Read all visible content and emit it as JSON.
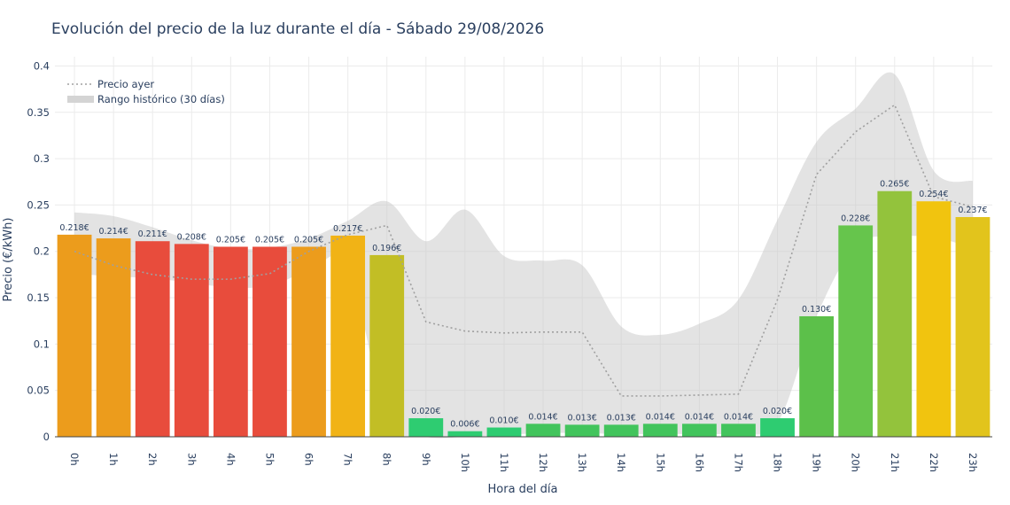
{
  "chart_data": {
    "type": "bar",
    "title": "Evolución del precio de la luz durante el día - Sábado 29/08/2026",
    "xlabel": "Hora del día",
    "ylabel": "Precio (€/kWh)",
    "ylim": [
      0,
      0.41
    ],
    "yticks": [
      0,
      0.05,
      0.1,
      0.15,
      0.2,
      0.25,
      0.3,
      0.35,
      0.4
    ],
    "ytick_labels": [
      "0",
      "0.05",
      "0.1",
      "0.15",
      "0.2",
      "0.25",
      "0.3",
      "0.35",
      "0.4"
    ],
    "grid": true,
    "legend_position": "top-left",
    "categories": [
      "0h",
      "1h",
      "2h",
      "3h",
      "4h",
      "5h",
      "6h",
      "7h",
      "8h",
      "9h",
      "10h",
      "11h",
      "12h",
      "13h",
      "14h",
      "15h",
      "16h",
      "17h",
      "18h",
      "19h",
      "20h",
      "21h",
      "22h",
      "23h"
    ],
    "values": [
      0.218,
      0.214,
      0.211,
      0.208,
      0.205,
      0.205,
      0.205,
      0.217,
      0.196,
      0.02,
      0.006,
      0.01,
      0.014,
      0.013,
      0.013,
      0.014,
      0.014,
      0.014,
      0.02,
      0.13,
      0.228,
      0.265,
      0.254,
      0.237
    ],
    "value_labels": [
      "0.218€",
      "0.214€",
      "0.211€",
      "0.208€",
      "0.205€",
      "0.205€",
      "0.205€",
      "0.217€",
      "0.196€",
      "0.020€",
      "0.006€",
      "0.010€",
      "0.014€",
      "0.013€",
      "0.013€",
      "0.014€",
      "0.014€",
      "0.014€",
      "0.020€",
      "0.130€",
      "0.228€",
      "0.265€",
      "0.254€",
      "0.237€"
    ],
    "bar_colors": [
      "#ec9c1c",
      "#ec9c1c",
      "#e84c3c",
      "#e84c3c",
      "#e84c3c",
      "#e84c3c",
      "#ec9c1c",
      "#f1b316",
      "#c2be25",
      "#2ecc71",
      "#2ecc71",
      "#2ecc71",
      "#42c45c",
      "#42c45c",
      "#42c45c",
      "#42c45c",
      "#42c45c",
      "#42c45c",
      "#2ecc71",
      "#5cc04a",
      "#66c54c",
      "#93c33c",
      "#f1c40f",
      "#e2c41c"
    ],
    "series": [
      {
        "name": "Precio ayer",
        "type": "line",
        "style": "dotted",
        "color": "#a0a0a0",
        "values": [
          0.2,
          0.185,
          0.175,
          0.17,
          0.17,
          0.176,
          0.2,
          0.218,
          0.228,
          0.124,
          0.114,
          0.112,
          0.113,
          0.113,
          0.044,
          0.044,
          0.045,
          0.046,
          0.148,
          0.283,
          0.329,
          0.358,
          0.259,
          0.248
        ]
      },
      {
        "name": "Rango histórico (30 días)",
        "type": "band",
        "color": "#c8c8c8",
        "upper": [
          0.242,
          0.238,
          0.226,
          0.212,
          0.203,
          0.204,
          0.214,
          0.233,
          0.254,
          0.211,
          0.245,
          0.195,
          0.19,
          0.185,
          0.119,
          0.11,
          0.122,
          0.148,
          0.234,
          0.318,
          0.354,
          0.391,
          0.287,
          0.276
        ],
        "lower": [
          0.176,
          0.173,
          0.171,
          0.166,
          0.161,
          0.163,
          0.179,
          0.185,
          0.02,
          0.0,
          0.0,
          0.002,
          0.004,
          0.004,
          0.003,
          0.003,
          0.003,
          0.004,
          0.015,
          0.13,
          0.206,
          0.216,
          0.215,
          0.204
        ]
      }
    ]
  }
}
